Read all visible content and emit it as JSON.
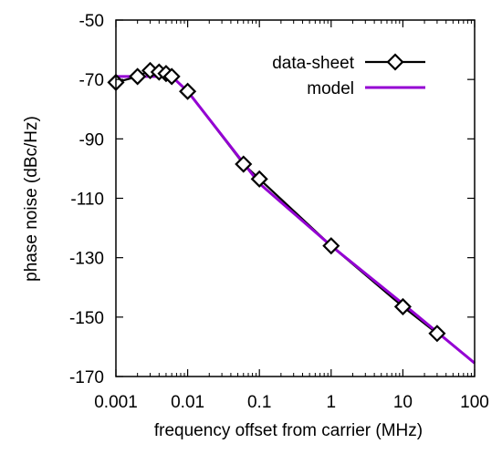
{
  "chart_data": {
    "type": "line",
    "xlabel": "frequency offset from carrier (MHz)",
    "ylabel": "phase noise (dBc/Hz)",
    "x_scale": "log",
    "xlim": [
      0.001,
      100
    ],
    "ylim": [
      -170,
      -50
    ],
    "x_ticks": [
      0.001,
      0.01,
      0.1,
      1,
      10,
      100
    ],
    "x_tick_labels": [
      "0.001",
      "0.01",
      "0.1",
      "1",
      "10",
      "100"
    ],
    "y_ticks": [
      -50,
      -70,
      -90,
      -110,
      -130,
      -150,
      -170
    ],
    "y_tick_labels": [
      "-50",
      "-70",
      "-90",
      "-110",
      "-130",
      "-150",
      "-170"
    ],
    "grid": false,
    "legend_position": "top-right",
    "series": [
      {
        "name": "data-sheet",
        "color": "#000000",
        "marker": "diamond",
        "x": [
          0.001,
          0.002,
          0.003,
          0.004,
          0.005,
          0.006,
          0.01,
          0.06,
          0.1,
          1,
          10,
          30
        ],
        "y": [
          -71,
          -69,
          -67,
          -67.5,
          -68,
          -69,
          -74,
          -98.5,
          -103.5,
          -126,
          -146.5,
          -155.5
        ]
      },
      {
        "name": "model",
        "color": "#9400d3",
        "marker": "none",
        "x": [
          0.001,
          0.006,
          0.01,
          0.1,
          1,
          10,
          100
        ],
        "y": [
          -69,
          -69,
          -74,
          -105,
          -126,
          -145.5,
          -165.5
        ]
      }
    ]
  }
}
